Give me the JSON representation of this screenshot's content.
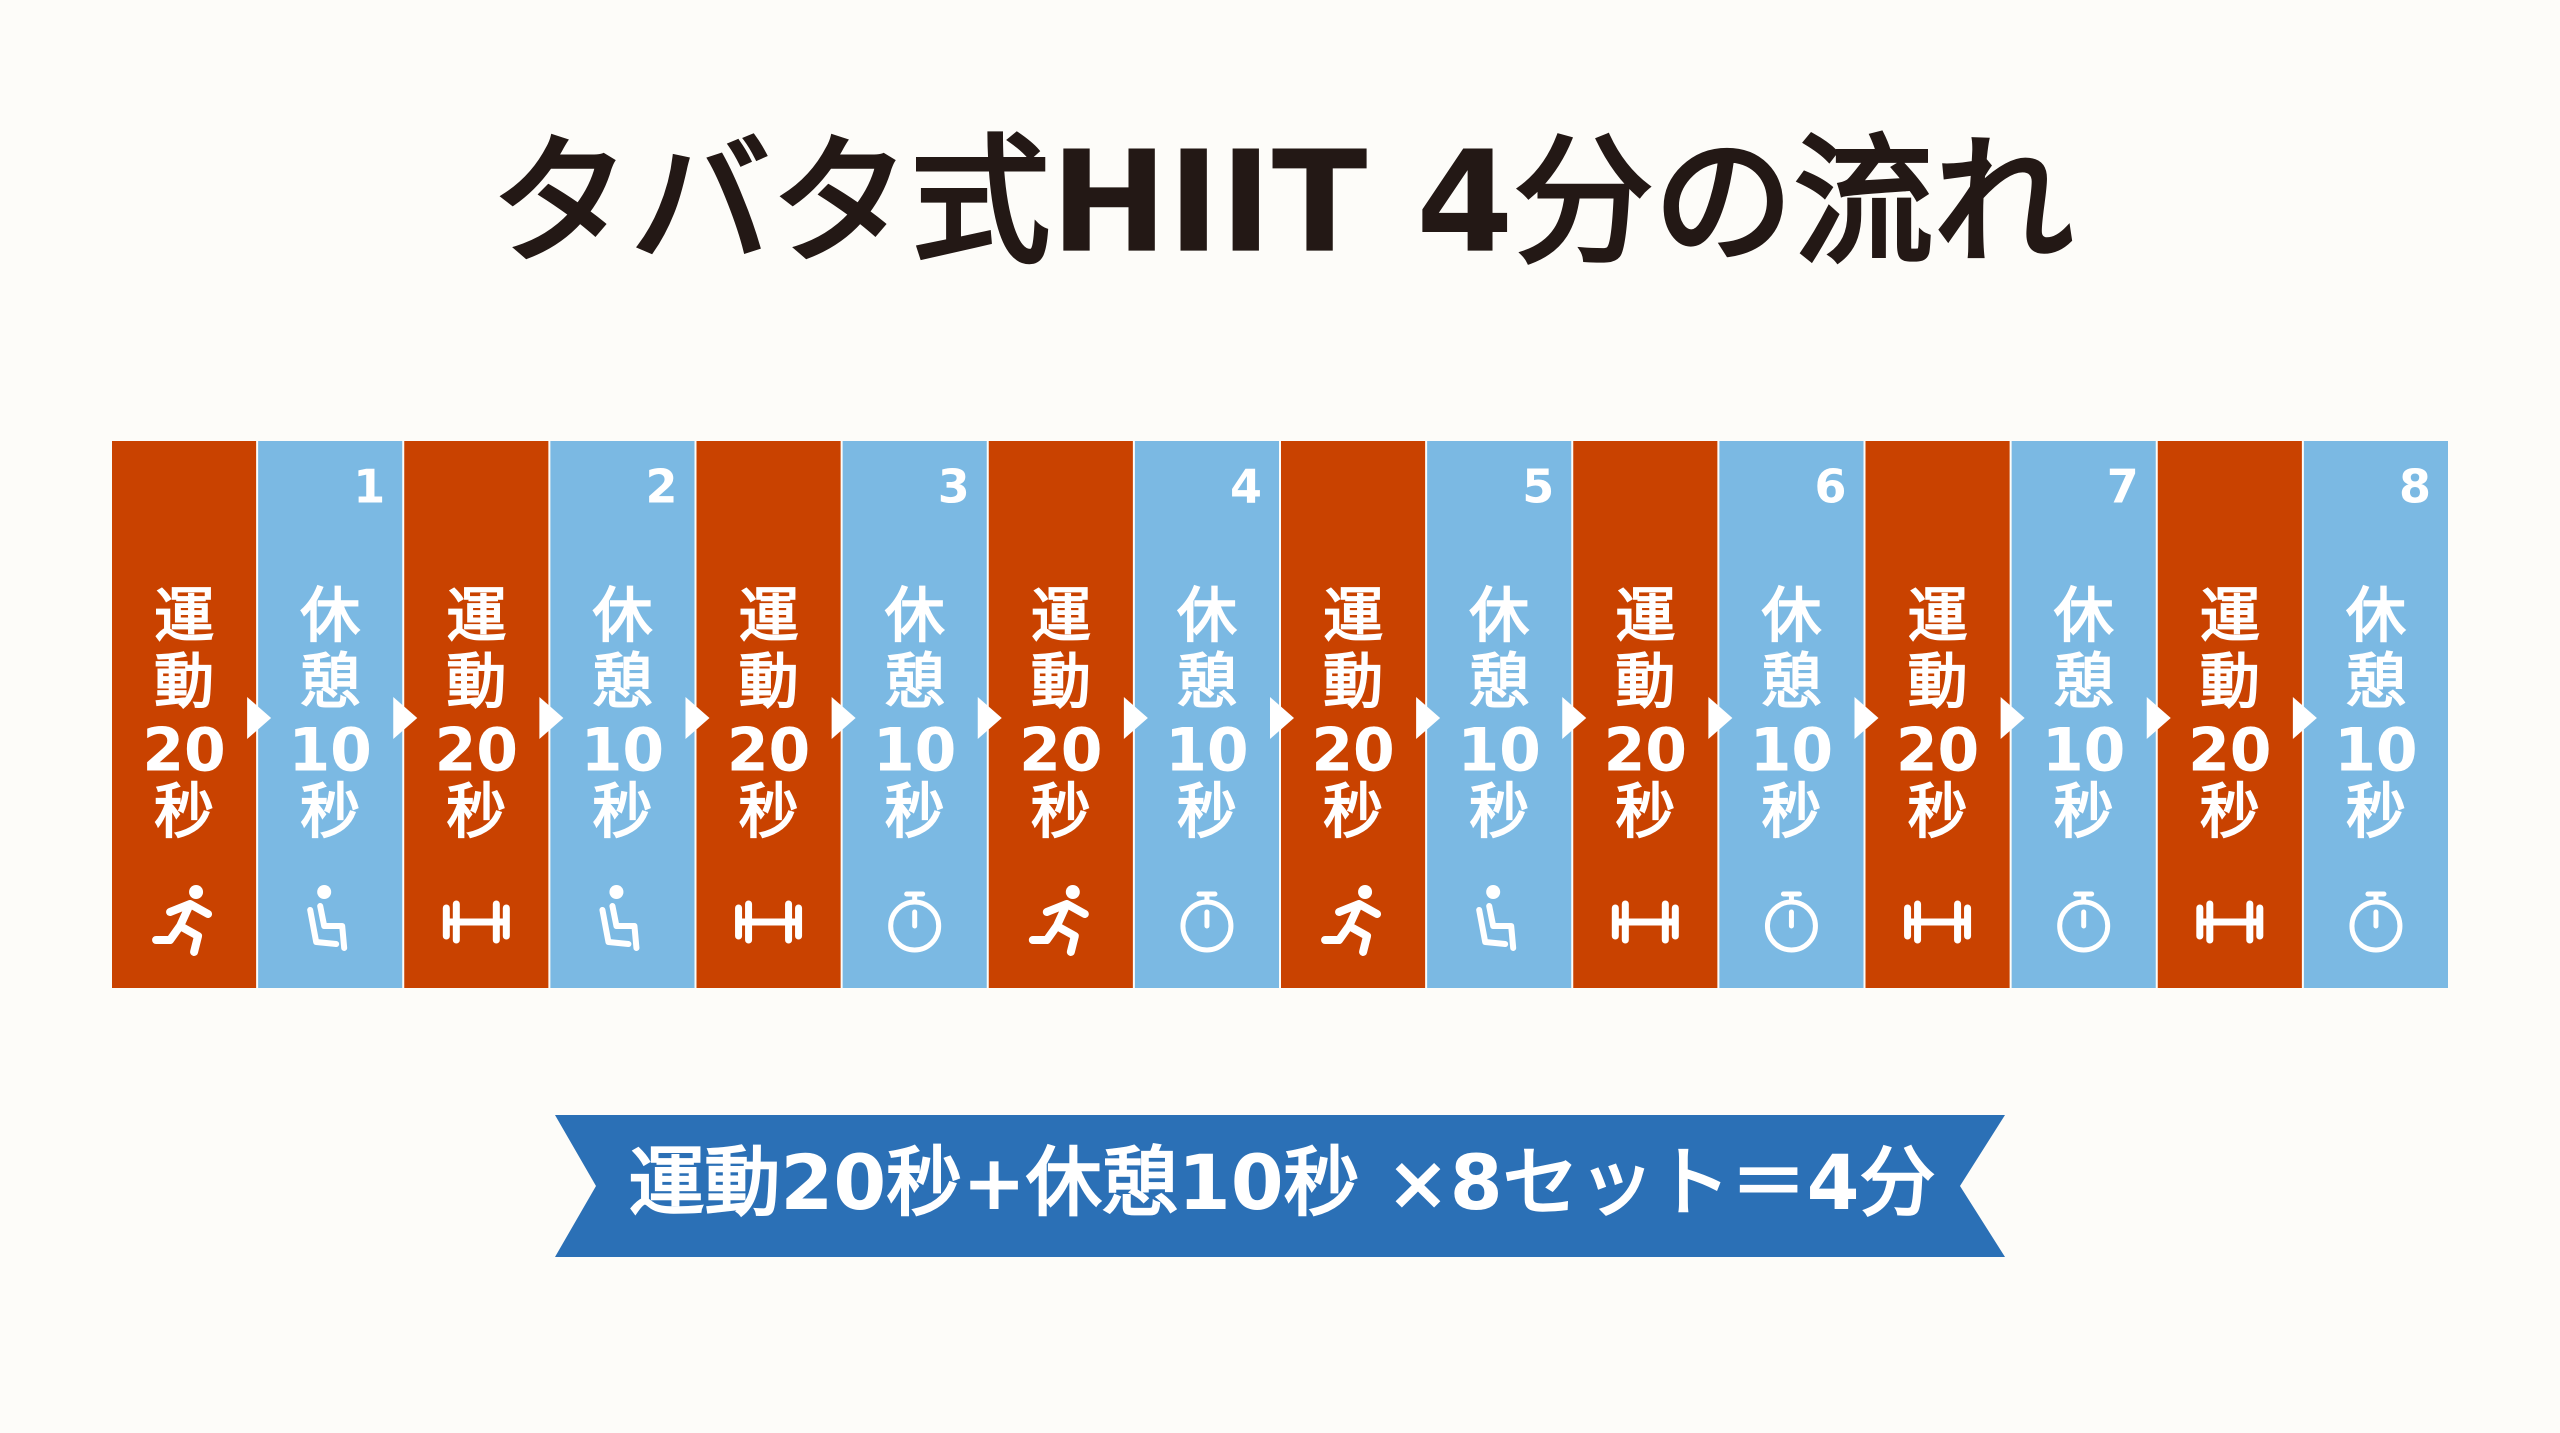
{
  "title": "タバタ式HIIT 4分の流れ",
  "colors": {
    "exercise": "#c94200",
    "rest": "#7bb9e3",
    "banner": "#2b70b6"
  },
  "blocks": [
    {
      "kind": "exercise",
      "lines": [
        "運",
        "動",
        "20",
        "秒"
      ],
      "icon": "run"
    },
    {
      "kind": "rest",
      "number": "1",
      "lines": [
        "休",
        "憩",
        "10",
        "秒"
      ],
      "icon": "chair"
    },
    {
      "kind": "exercise",
      "lines": [
        "運",
        "動",
        "20",
        "秒"
      ],
      "icon": "dumbbell"
    },
    {
      "kind": "rest",
      "number": "2",
      "lines": [
        "休",
        "憩",
        "10",
        "秒"
      ],
      "icon": "chair"
    },
    {
      "kind": "exercise",
      "lines": [
        "運",
        "動",
        "20",
        "秒"
      ],
      "icon": "dumbbell"
    },
    {
      "kind": "rest",
      "number": "3",
      "lines": [
        "休",
        "憩",
        "10",
        "秒"
      ],
      "icon": "timer"
    },
    {
      "kind": "exercise",
      "lines": [
        "運",
        "動",
        "20",
        "秒"
      ],
      "icon": "run"
    },
    {
      "kind": "rest",
      "number": "4",
      "lines": [
        "休",
        "憩",
        "10",
        "秒"
      ],
      "icon": "timer"
    },
    {
      "kind": "exercise",
      "lines": [
        "運",
        "動",
        "20",
        "秒"
      ],
      "icon": "run"
    },
    {
      "kind": "rest",
      "number": "5",
      "lines": [
        "休",
        "憩",
        "10",
        "秒"
      ],
      "icon": "chair"
    },
    {
      "kind": "exercise",
      "lines": [
        "運",
        "動",
        "20",
        "秒"
      ],
      "icon": "dumbbell"
    },
    {
      "kind": "rest",
      "number": "6",
      "lines": [
        "休",
        "憩",
        "10",
        "秒"
      ],
      "icon": "timer"
    },
    {
      "kind": "exercise",
      "lines": [
        "運",
        "動",
        "20",
        "秒"
      ],
      "icon": "dumbbell"
    },
    {
      "kind": "rest",
      "number": "7",
      "lines": [
        "休",
        "憩",
        "10",
        "秒"
      ],
      "icon": "timer"
    },
    {
      "kind": "exercise",
      "lines": [
        "運",
        "動",
        "20",
        "秒"
      ],
      "icon": "dumbbell"
    },
    {
      "kind": "rest",
      "number": "8",
      "lines": [
        "休",
        "憩",
        "10",
        "秒"
      ],
      "icon": "timer"
    }
  ],
  "banner": {
    "text": "運動20秒+休憩10秒 ×8セット＝4分"
  }
}
